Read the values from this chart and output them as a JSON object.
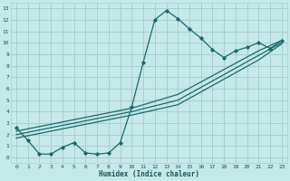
{
  "xlabel": "Humidex (Indice chaleur)",
  "bg_color": "#c5e8e8",
  "grid_color": "#aacfcf",
  "line_color": "#1a6b6b",
  "xlim": [
    -0.5,
    23.5
  ],
  "ylim": [
    -0.5,
    13.5
  ],
  "xticks": [
    0,
    1,
    2,
    3,
    4,
    5,
    6,
    7,
    8,
    9,
    10,
    11,
    12,
    13,
    14,
    15,
    16,
    17,
    18,
    19,
    20,
    21,
    22,
    23
  ],
  "yticks": [
    0,
    1,
    2,
    3,
    4,
    5,
    6,
    7,
    8,
    9,
    10,
    11,
    12,
    13
  ],
  "main_x": [
    0,
    1,
    2,
    3,
    4,
    5,
    6,
    7,
    8,
    9,
    10,
    11,
    12,
    13,
    14,
    15,
    16,
    17,
    18,
    19,
    20,
    21,
    22,
    23
  ],
  "main_y": [
    2.6,
    1.5,
    0.3,
    0.3,
    0.9,
    1.3,
    0.4,
    0.3,
    0.4,
    1.3,
    4.4,
    8.3,
    12.0,
    12.8,
    12.1,
    11.2,
    10.4,
    9.4,
    8.7,
    9.3,
    9.6,
    10.0,
    9.5,
    10.2
  ],
  "ref1_x": [
    0,
    10,
    14,
    21,
    23
  ],
  "ref1_y": [
    2.3,
    4.3,
    5.5,
    9.3,
    10.2
  ],
  "ref2_x": [
    0,
    10,
    14,
    21,
    23
  ],
  "ref2_y": [
    2.0,
    4.0,
    5.0,
    8.9,
    10.0
  ],
  "ref3_x": [
    0,
    10,
    14,
    21,
    23
  ],
  "ref3_y": [
    1.7,
    3.7,
    4.6,
    8.5,
    9.9
  ]
}
